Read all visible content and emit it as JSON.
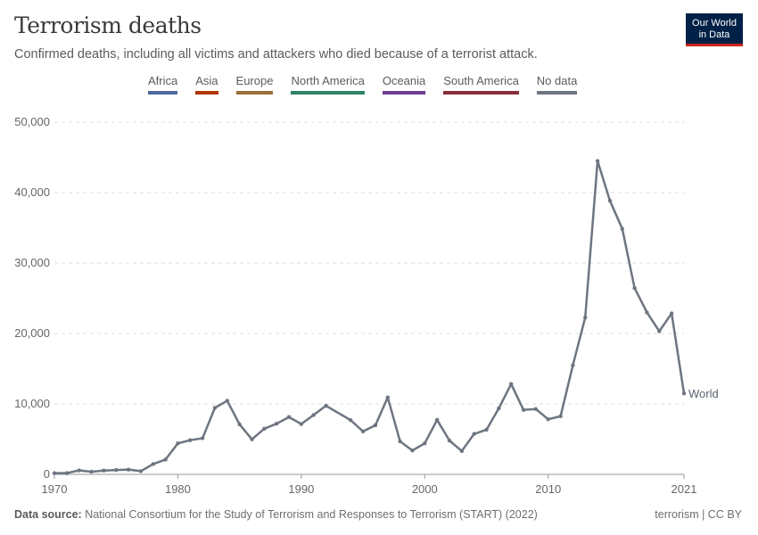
{
  "header": {
    "title": "Terrorism deaths",
    "subtitle": "Confirmed deaths, including all victims and attackers who died because of a terrorist attack.",
    "logo_line1": "Our World",
    "logo_line2": "in Data"
  },
  "legend": [
    {
      "label": "Africa",
      "color": "#4c6a9c"
    },
    {
      "label": "Asia",
      "color": "#b13507"
    },
    {
      "label": "Europe",
      "color": "#9a6f3b"
    },
    {
      "label": "North America",
      "color": "#2c8465"
    },
    {
      "label": "Oceania",
      "color": "#6d3e91"
    },
    {
      "label": "South America",
      "color": "#883039"
    },
    {
      "label": "No data",
      "color": "#6e7581"
    }
  ],
  "footer": {
    "source_label": "Data source:",
    "source_text": " National Consortium for the Study of Terrorism and Responses to Terrorism (START) (2022)",
    "right": "terrorism | CC BY"
  },
  "chart_data": {
    "type": "line",
    "title": "Terrorism deaths",
    "xlim": [
      1970,
      2021
    ],
    "ylim": [
      0,
      50000
    ],
    "x_ticks": [
      "1970",
      "1980",
      "1990",
      "2000",
      "2010",
      "2021"
    ],
    "y_ticks": [
      "0",
      "10,000",
      "20,000",
      "30,000",
      "40,000",
      "50,000"
    ],
    "grid": "horizontal dashed",
    "series": [
      {
        "name": "World",
        "color": "#6e7581",
        "x": [
          1970,
          1971,
          1972,
          1973,
          1974,
          1975,
          1976,
          1977,
          1978,
          1979,
          1980,
          1981,
          1982,
          1983,
          1984,
          1985,
          1986,
          1987,
          1988,
          1989,
          1990,
          1991,
          1992,
          1994,
          1995,
          1996,
          1997,
          1998,
          1999,
          2000,
          2001,
          2002,
          2003,
          2004,
          2005,
          2006,
          2007,
          2008,
          2009,
          2010,
          2011,
          2012,
          2013,
          2014,
          2015,
          2016,
          2017,
          2018,
          2019,
          2020,
          2021
        ],
        "y": [
          174,
          173,
          566,
          370,
          539,
          617,
          674,
          456,
          1459,
          2100,
          4400,
          4851,
          5136,
          9444,
          10450,
          7094,
          4976,
          6483,
          7189,
          8136,
          7148,
          8429,
          9742,
          7690,
          6103,
          6966,
          10924,
          4688,
          3393,
          4403,
          7729,
          4805,
          3317,
          5743,
          6331,
          9380,
          12824,
          9157,
          9273,
          7827,
          8246,
          15497,
          22273,
          44490,
          38853,
          34871,
          26445,
          22980,
          20328,
          22847,
          11500
        ]
      }
    ]
  }
}
